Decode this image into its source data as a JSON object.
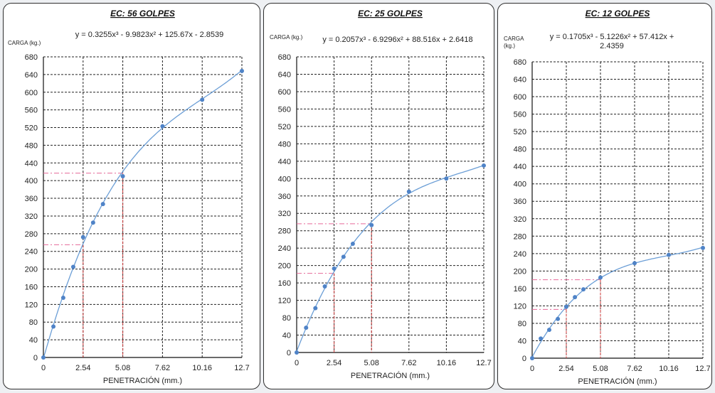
{
  "colors": {
    "curve": "#6b9ed6",
    "point": "#4f83c7",
    "guide_pink": "#e66a9a",
    "guide_red": "#d23a3a"
  },
  "chart_data": [
    {
      "type": "scatter",
      "title": "EC: 56 GOLPES",
      "equation": "y = 0.3255x³ - 9.9823x² + 125.67x - 2.8539",
      "ylabel": "CARGA (kg.)",
      "xlabel": "PENETRACIÓN (mm.)",
      "xlim": [
        0,
        12.7
      ],
      "ylim": [
        0,
        680
      ],
      "x_ticks": [
        "0",
        "2.54",
        "5.08",
        "7.62",
        "10.16",
        "12.7"
      ],
      "y_ticks": [
        "0",
        "40",
        "80",
        "120",
        "160",
        "200",
        "240",
        "280",
        "320",
        "360",
        "400",
        "440",
        "480",
        "520",
        "560",
        "600",
        "640",
        "680"
      ],
      "grid": true,
      "trendline": "polynomial order 3",
      "points": [
        {
          "x": 0,
          "y": 0
        },
        {
          "x": 0.64,
          "y": 70
        },
        {
          "x": 1.27,
          "y": 135
        },
        {
          "x": 1.91,
          "y": 205
        },
        {
          "x": 2.54,
          "y": 272
        },
        {
          "x": 3.18,
          "y": 305
        },
        {
          "x": 3.81,
          "y": 347
        },
        {
          "x": 5.08,
          "y": 410
        },
        {
          "x": 7.62,
          "y": 523
        },
        {
          "x": 10.16,
          "y": 583
        },
        {
          "x": 12.7,
          "y": 648
        }
      ],
      "guides": [
        {
          "x": 2.54,
          "y": 255
        },
        {
          "x": 5.08,
          "y": 417
        }
      ]
    },
    {
      "type": "scatter",
      "title": "EC: 25 GOLPES",
      "equation": "y = 0.2057x³ - 6.9296x² + 88.516x + 2.6418",
      "ylabel": "CARGA (kg.)",
      "xlabel": "PENETRACIÓN (mm.)",
      "xlim": [
        0,
        12.7
      ],
      "ylim": [
        0,
        680
      ],
      "x_ticks": [
        "0",
        "2.54",
        "5.08",
        "7.62",
        "10.16",
        "12.7"
      ],
      "y_ticks": [
        "0",
        "40",
        "80",
        "120",
        "160",
        "200",
        "240",
        "280",
        "320",
        "360",
        "400",
        "440",
        "480",
        "520",
        "560",
        "600",
        "640",
        "680"
      ],
      "grid": true,
      "trendline": "polynomial order 3",
      "points": [
        {
          "x": 0,
          "y": 0
        },
        {
          "x": 0.64,
          "y": 57
        },
        {
          "x": 1.27,
          "y": 102
        },
        {
          "x": 1.91,
          "y": 152
        },
        {
          "x": 2.54,
          "y": 193
        },
        {
          "x": 3.18,
          "y": 220
        },
        {
          "x": 3.81,
          "y": 250
        },
        {
          "x": 5.08,
          "y": 293
        },
        {
          "x": 7.62,
          "y": 370
        },
        {
          "x": 10.16,
          "y": 400
        },
        {
          "x": 12.7,
          "y": 430
        }
      ],
      "guides": [
        {
          "x": 2.54,
          "y": 182
        },
        {
          "x": 5.08,
          "y": 296
        }
      ]
    },
    {
      "type": "scatter",
      "title": "EC: 12 GOLPES",
      "equation": "y = 0.1705x³ - 5.1226x² + 57.412x + 2.4359",
      "ylabel": "CARGA (kg.)",
      "xlabel": "PENETRACIÓN (mm.)",
      "xlim": [
        0,
        12.7
      ],
      "ylim": [
        0,
        680
      ],
      "x_ticks": [
        "0",
        "2.54",
        "5.08",
        "7.62",
        "10.16",
        "12.7"
      ],
      "y_ticks": [
        "0",
        "40",
        "80",
        "120",
        "160",
        "200",
        "240",
        "280",
        "320",
        "360",
        "400",
        "440",
        "480",
        "520",
        "560",
        "600",
        "640",
        "680"
      ],
      "grid": true,
      "trendline": "polynomial order 3",
      "points": [
        {
          "x": 0,
          "y": 0
        },
        {
          "x": 0.64,
          "y": 45
        },
        {
          "x": 1.27,
          "y": 65
        },
        {
          "x": 1.91,
          "y": 90
        },
        {
          "x": 2.54,
          "y": 118
        },
        {
          "x": 3.18,
          "y": 140
        },
        {
          "x": 3.81,
          "y": 158
        },
        {
          "x": 5.08,
          "y": 185
        },
        {
          "x": 7.62,
          "y": 218
        },
        {
          "x": 10.16,
          "y": 237
        },
        {
          "x": 12.7,
          "y": 253
        }
      ],
      "guides": [
        {
          "x": 2.54,
          "y": 112
        },
        {
          "x": 5.08,
          "y": 180
        }
      ]
    }
  ]
}
